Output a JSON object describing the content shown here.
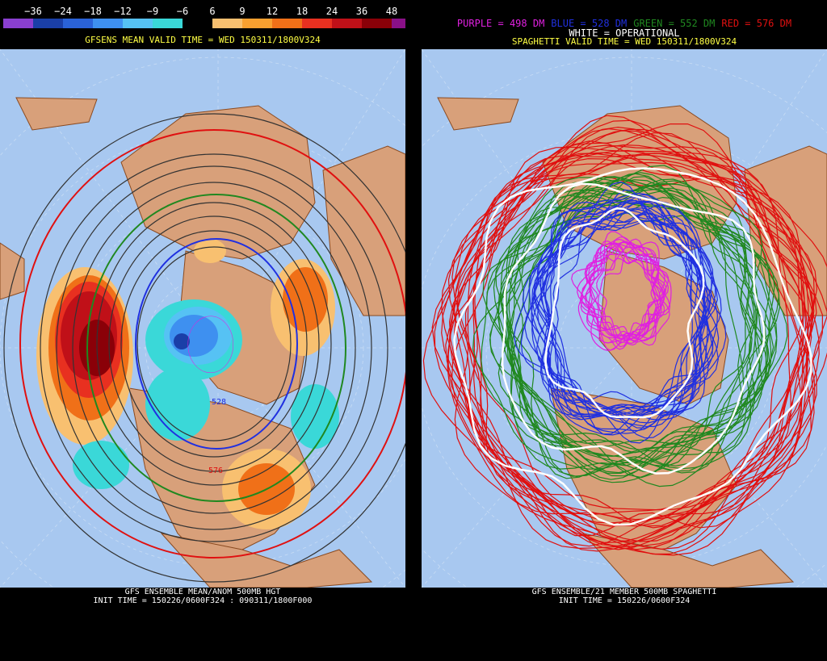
{
  "left": {
    "scale_labels": [
      "−36",
      "−24",
      "−18",
      "−12",
      "−9",
      "−6",
      "6",
      "9",
      "12",
      "18",
      "24",
      "36",
      "48"
    ],
    "scale_colors": [
      "#8a3fd0",
      "#1a3fa8",
      "#2a62d8",
      "#3e90f0",
      "#56c2f4",
      "#3ad8d8",
      "#000000",
      "#f8c070",
      "#f8a030",
      "#f07018",
      "#e83020",
      "#c01018",
      "#8a0008",
      "#8a1088"
    ],
    "valid_title": "GFSENS MEAN VALID TIME = WED 150311/1800V324",
    "footer_line1": "GFS ENSEMBLE MEAN/ANOM 500MB HGT",
    "footer_line2": "INIT TIME = 150226/0600F324 : 090311/1800F000",
    "contour_labels": [
      "528",
      "576"
    ]
  },
  "right": {
    "legend": {
      "purple": "PURPLE = 498 DM",
      "blue": "BLUE = 528 DM",
      "green": "GREEN = 552 DM",
      "red": "RED = 576 DM",
      "white": "WHITE = OPERATIONAL"
    },
    "colors": {
      "purple": "#e020e0",
      "blue": "#2030e0",
      "green": "#208820",
      "red": "#e01010",
      "white": "#ffffff"
    },
    "valid_title": "SPAGHETTI VALID TIME = WED 150311/1800V324",
    "footer_line1": "GFS ENSEMBLE/21 MEMBER 500MB SPAGHETTI",
    "footer_line2": "INIT TIME = 150226/0600F324"
  },
  "map_colors": {
    "ocean": "#a8c8f0",
    "land": "#d8a07a",
    "border": "#8a4a20"
  }
}
